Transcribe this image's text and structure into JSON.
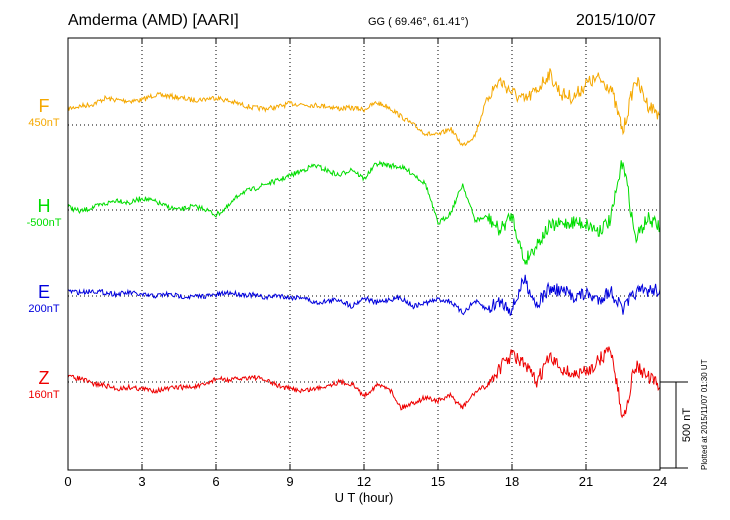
{
  "header": {
    "station": "Amderma (AMD)  [AARI]",
    "coords": "GG ( 69.46°,  61.41°)",
    "date": "2015/10/07"
  },
  "footer": "Plotted at 2015/11/07 01:30 UT",
  "colors": {
    "F": "#f5a800",
    "H": "#00dd00",
    "E": "#0000dd",
    "Z": "#ee0000"
  },
  "chart_data": {
    "type": "line",
    "xlabel": "U T (hour)",
    "xlim": [
      0,
      24
    ],
    "xticks": [
      "0",
      "3",
      "6",
      "9",
      "12",
      "15",
      "18",
      "21",
      "24"
    ],
    "scale_bar_label": "500 nT",
    "series": [
      {
        "name": "F",
        "baseline_label": "450nT",
        "x": [
          0,
          0.5,
          1,
          1.5,
          2,
          2.5,
          3,
          3.5,
          4,
          4.5,
          5,
          5.5,
          6,
          6.5,
          7,
          7.5,
          8,
          8.5,
          9,
          9.5,
          10,
          10.5,
          11,
          11.5,
          12,
          12.5,
          13,
          13.5,
          14,
          14.5,
          15,
          15.5,
          16,
          16.5,
          17,
          17.5,
          18,
          18.5,
          19,
          19.5,
          20,
          20.5,
          21,
          21.5,
          22,
          22.5,
          23,
          23.5,
          24
        ],
        "y": [
          95,
          110,
          120,
          155,
          145,
          140,
          145,
          175,
          170,
          160,
          145,
          150,
          160,
          140,
          120,
          100,
          95,
          105,
          125,
          120,
          115,
          110,
          95,
          100,
          90,
          130,
          105,
          50,
          0,
          -50,
          -60,
          -20,
          -120,
          -60,
          160,
          260,
          190,
          140,
          200,
          300,
          180,
          160,
          240,
          270,
          220,
          -40,
          270,
          120,
          60
        ]
      },
      {
        "name": "H",
        "baseline_label": "-500nT",
        "x": [
          0,
          0.5,
          1,
          1.5,
          2,
          2.5,
          3,
          3.5,
          4,
          4.5,
          5,
          5.5,
          6,
          6.5,
          7,
          7.5,
          8,
          8.5,
          9,
          9.5,
          10,
          10.5,
          11,
          11.5,
          12,
          12.5,
          13,
          13.5,
          14,
          14.5,
          15,
          15.5,
          16,
          16.5,
          17,
          17.5,
          18,
          18.5,
          19,
          19.5,
          20,
          20.5,
          21,
          21.5,
          22,
          22.5,
          23,
          23.5,
          24
        ],
        "y": [
          20,
          -10,
          15,
          35,
          60,
          40,
          70,
          50,
          20,
          0,
          20,
          10,
          -30,
          20,
          100,
          120,
          150,
          170,
          200,
          230,
          260,
          230,
          200,
          240,
          180,
          270,
          260,
          250,
          210,
          150,
          -80,
          -20,
          150,
          -60,
          -40,
          -120,
          -30,
          -300,
          -200,
          -100,
          -80,
          -70,
          -80,
          -120,
          -60,
          300,
          -170,
          -50,
          -100
        ]
      },
      {
        "name": "E",
        "baseline_label": "200nT",
        "x": [
          0,
          0.5,
          1,
          1.5,
          2,
          2.5,
          3,
          3.5,
          4,
          4.5,
          5,
          5.5,
          6,
          6.5,
          7,
          7.5,
          8,
          8.5,
          9,
          9.5,
          10,
          10.5,
          11,
          11.5,
          12,
          12.5,
          13,
          13.5,
          14,
          14.5,
          15,
          15.5,
          16,
          16.5,
          17,
          17.5,
          18,
          18.5,
          19,
          19.5,
          20,
          20.5,
          21,
          21.5,
          22,
          22.5,
          23,
          23.5,
          24
        ],
        "y": [
          30,
          20,
          30,
          20,
          10,
          20,
          5,
          0,
          10,
          0,
          -5,
          0,
          5,
          20,
          10,
          5,
          -10,
          5,
          -10,
          -5,
          -40,
          -30,
          -20,
          -60,
          -10,
          -40,
          -20,
          -10,
          -60,
          -40,
          -20,
          -30,
          -100,
          -30,
          -80,
          -30,
          -80,
          100,
          -50,
          40,
          30,
          0,
          10,
          -20,
          30,
          -80,
          20,
          30,
          40
        ]
      },
      {
        "name": "Z",
        "baseline_label": "160nT",
        "x": [
          0,
          0.5,
          1,
          1.5,
          2,
          2.5,
          3,
          3.5,
          4,
          4.5,
          5,
          5.5,
          6,
          6.5,
          7,
          7.5,
          8,
          8.5,
          9,
          9.5,
          10,
          10.5,
          11,
          11.5,
          12,
          12.5,
          13,
          13.5,
          14,
          14.5,
          15,
          15.5,
          16,
          16.5,
          17,
          17.5,
          18,
          18.5,
          19,
          19.5,
          20,
          20.5,
          21,
          21.5,
          22,
          22.5,
          23,
          23.5,
          24
        ],
        "y": [
          30,
          20,
          -10,
          -20,
          -40,
          -30,
          -40,
          -50,
          -40,
          -30,
          -30,
          -20,
          20,
          10,
          20,
          30,
          10,
          -20,
          -40,
          -50,
          -40,
          -20,
          0,
          -10,
          -80,
          -20,
          -30,
          -150,
          -120,
          -90,
          -110,
          -80,
          -150,
          -60,
          -20,
          80,
          160,
          100,
          0,
          140,
          80,
          40,
          60,
          120,
          200,
          -220,
          100,
          30,
          -30
        ]
      }
    ]
  }
}
